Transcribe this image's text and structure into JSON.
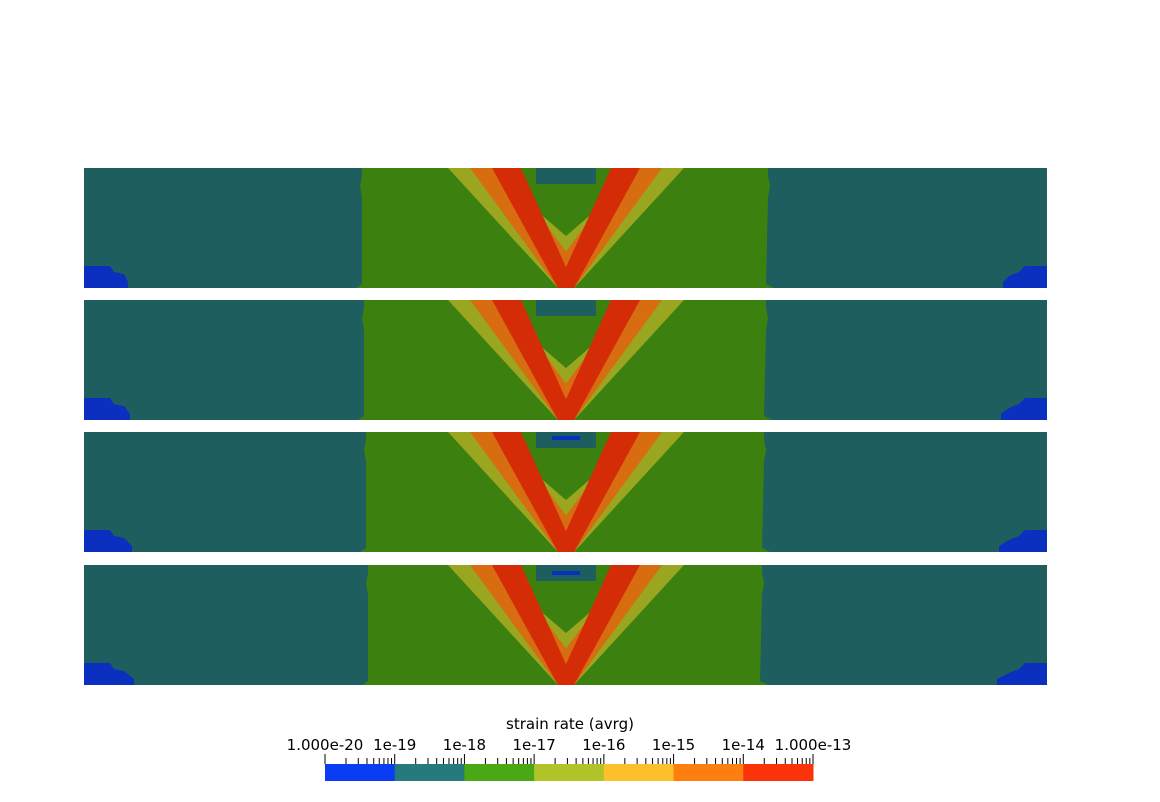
{
  "legend": {
    "title": "strain rate (avrg)",
    "tick_labels": [
      "1.000e-20",
      "1e-19",
      "1e-18",
      "1e-17",
      "1e-16",
      "1e-15",
      "1e-14",
      "1.000e-13"
    ],
    "bins": [
      {
        "from": "1e-20",
        "to": "1e-19",
        "color": "#0a3cf4"
      },
      {
        "from": "1e-19",
        "to": "1e-18",
        "color": "#247a7c"
      },
      {
        "from": "1e-18",
        "to": "1e-17",
        "color": "#4aa814"
      },
      {
        "from": "1e-17",
        "to": "1e-16",
        "color": "#b0c42a"
      },
      {
        "from": "1e-16",
        "to": "1e-15",
        "color": "#fcc12a"
      },
      {
        "from": "1e-15",
        "to": "1e-14",
        "color": "#fd7f10"
      },
      {
        "from": "1e-14",
        "to": "1e-13",
        "color": "#fa3408"
      }
    ]
  },
  "panels": [
    "snapshot-1",
    "snapshot-2",
    "snapshot-3",
    "snapshot-4"
  ],
  "palette": {
    "background": "#ffffff",
    "field_low": "#1f5e5e",
    "field_mid": "#3c8010",
    "band_outer": "#9aa520",
    "band_orange": "#d86c10",
    "band_red": "#d42c06",
    "corner": "#0b2fbf"
  }
}
